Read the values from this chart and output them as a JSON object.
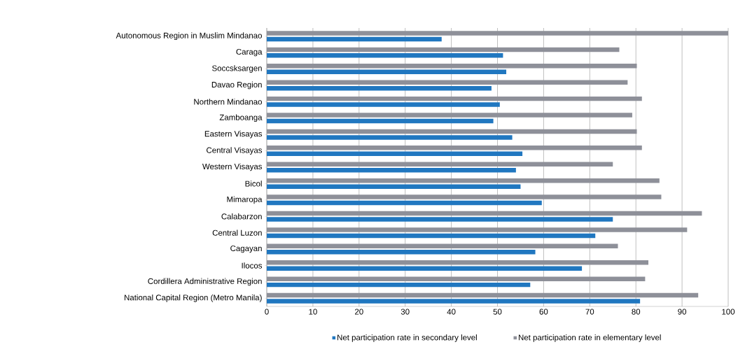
{
  "chart_data": {
    "type": "bar",
    "orientation": "horizontal",
    "categories": [
      "Autonomous Region in Muslim Mindanao",
      "Caraga",
      "Soccsksargen",
      "Davao Region",
      "Northern Mindanao",
      "Zamboanga",
      "Eastern Visayas",
      "Central Visayas",
      "Western Visayas",
      "Bicol",
      "Mimaropa",
      "Calabarzon",
      "Central Luzon",
      "Cagayan",
      "Ilocos",
      "Cordillera Administrative Region",
      "National Capital Region (Metro Manila)"
    ],
    "series": [
      {
        "name": "Net participation rate in secondary level",
        "color": "#2077c0",
        "values": [
          37.9,
          51.2,
          51.9,
          48.7,
          50.5,
          49.1,
          53.2,
          55.4,
          54.0,
          55.0,
          59.6,
          75.0,
          71.2,
          58.2,
          68.3,
          57.1,
          80.9
        ]
      },
      {
        "name": "Net participation rate in elementary level",
        "color": "#8e9099",
        "values": [
          100,
          76.4,
          80.2,
          78.2,
          81.3,
          79.2,
          80.2,
          81.3,
          75.0,
          85.1,
          85.5,
          94.3,
          91.1,
          76.1,
          82.7,
          82.0,
          93.5
        ]
      }
    ],
    "xlim": [
      0,
      100
    ],
    "xticks": [
      0,
      10,
      20,
      30,
      40,
      50,
      60,
      70,
      80,
      90,
      100
    ],
    "grid": "x",
    "legend": "bottom"
  }
}
